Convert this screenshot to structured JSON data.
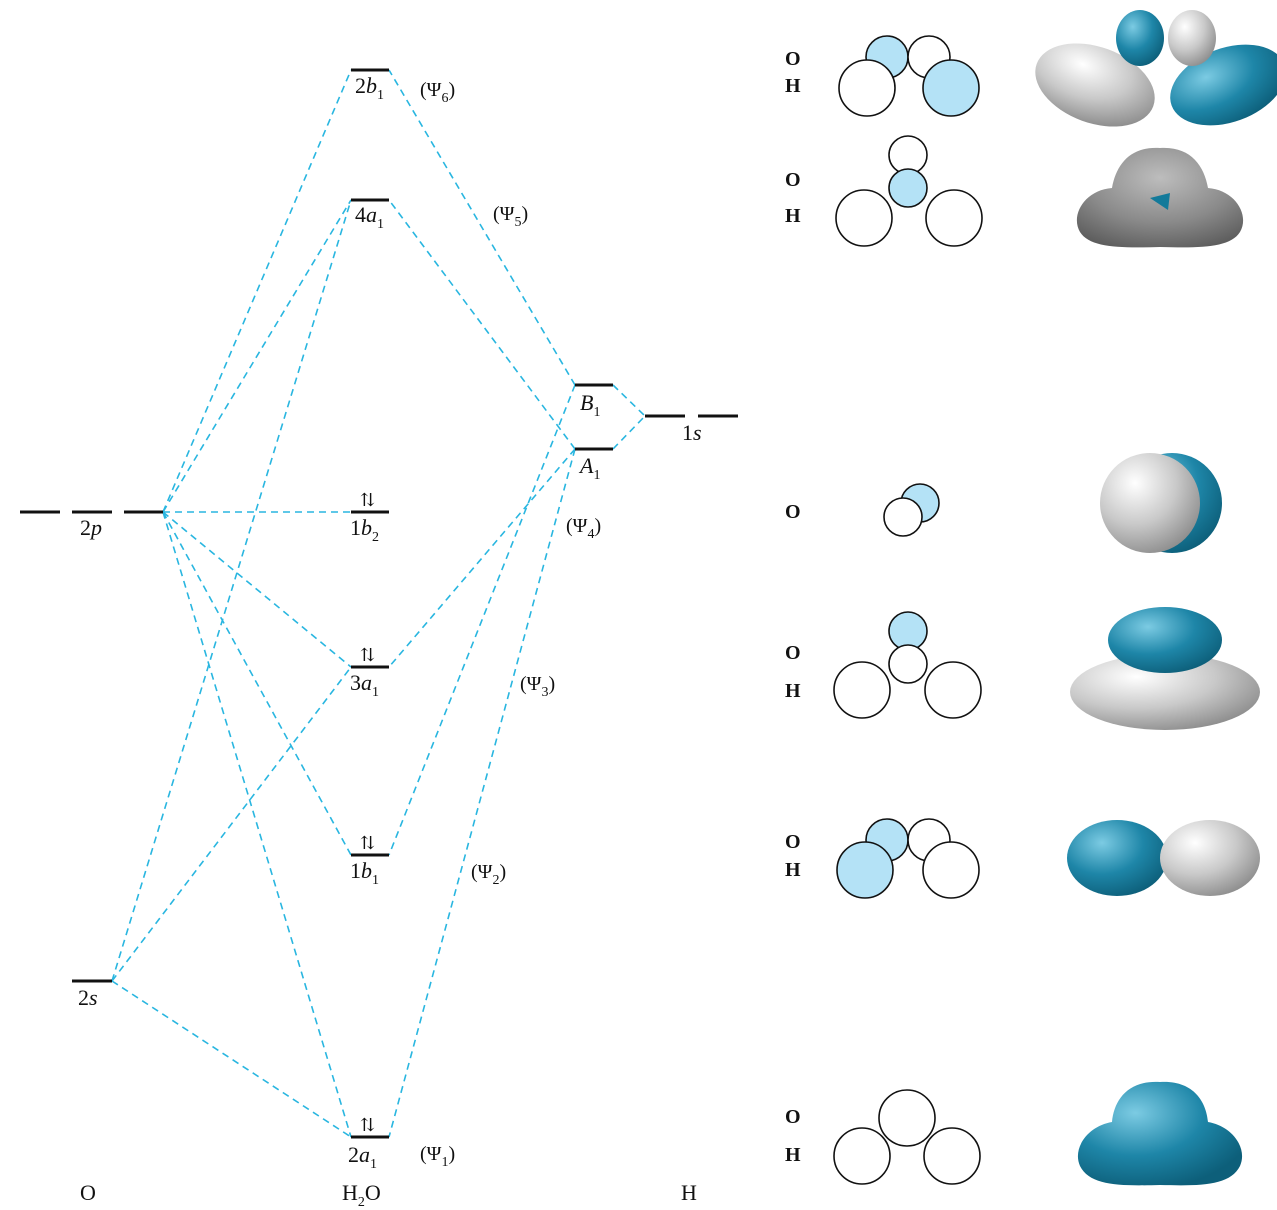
{
  "columns": {
    "oxygen": "O",
    "water": "H",
    "water_sub": "2",
    "water_tail": "O",
    "hydrogen": "H"
  },
  "oxygen_levels": {
    "p": {
      "main": "2",
      "var": "p"
    },
    "s": {
      "main": "2",
      "var": "s"
    }
  },
  "hydrogen_levels": {
    "s": {
      "main": "1",
      "var": "s"
    },
    "b1": {
      "var": "B",
      "sub": "1"
    },
    "a1": {
      "var": "A",
      "sub": "1"
    }
  },
  "mo_levels": [
    {
      "id": "2b1",
      "num": "2",
      "var": "b",
      "sub": "1",
      "psi": "Ψ",
      "psi_sub": "6",
      "occupied": false
    },
    {
      "id": "4a1",
      "num": "4",
      "var": "a",
      "sub": "1",
      "psi": "Ψ",
      "psi_sub": "5",
      "occupied": false
    },
    {
      "id": "1b2",
      "num": "1",
      "var": "b",
      "sub": "2",
      "psi": "Ψ",
      "psi_sub": "4",
      "occupied": true
    },
    {
      "id": "3a1",
      "num": "3",
      "var": "a",
      "sub": "1",
      "psi": "Ψ",
      "psi_sub": "3",
      "occupied": true
    },
    {
      "id": "1b1",
      "num": "1",
      "var": "b",
      "sub": "1",
      "psi": "Ψ",
      "psi_sub": "2",
      "occupied": true
    },
    {
      "id": "2a1",
      "num": "2",
      "var": "a",
      "sub": "1",
      "psi": "Ψ",
      "psi_sub": "1",
      "occupied": true
    }
  ],
  "spin_pair": "⇅",
  "orbital_rows": [
    {
      "id": "psi6",
      "labels": [
        "O",
        "H"
      ]
    },
    {
      "id": "psi5",
      "labels": [
        "O",
        "H"
      ]
    },
    {
      "id": "psi4",
      "labels": [
        "O"
      ]
    },
    {
      "id": "psi3",
      "labels": [
        "O",
        "H"
      ]
    },
    {
      "id": "psi2",
      "labels": [
        "O",
        "H"
      ]
    },
    {
      "id": "psi1",
      "labels": [
        "O",
        "H"
      ]
    }
  ],
  "colors": {
    "connector": "#29b6e0",
    "lobe_fill": "#b4e2f6",
    "lobe_dark": "#137a9a",
    "lobe_gray": "#b8b8b8",
    "line": "#111111"
  }
}
